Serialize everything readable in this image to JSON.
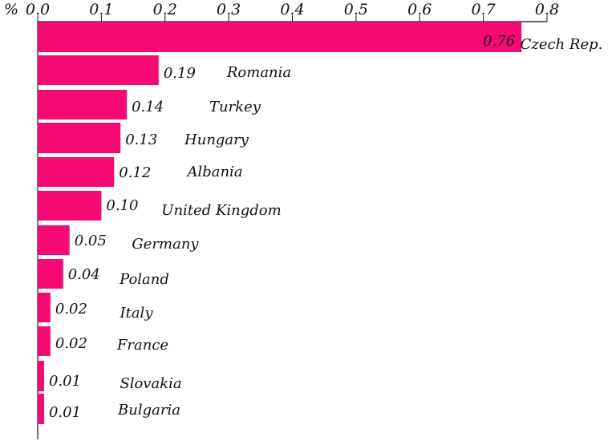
{
  "chart_data": {
    "type": "bar",
    "orientation": "horizontal",
    "unit": "%",
    "x_ticks": [
      "0.0",
      "0.1",
      "0.2",
      "0.3",
      "0.4",
      "0.5",
      "0.6",
      "0.7",
      "0.8"
    ],
    "xlim": [
      0,
      0.8
    ],
    "categories": [
      "Czech Rep.",
      "Romania",
      "Turkey",
      "Hungary",
      "Albania",
      "United Kingdom",
      "Germany",
      "Poland",
      "Italy",
      "France",
      "Slovakia",
      "Bulgaria"
    ],
    "values": [
      0.76,
      0.19,
      0.14,
      0.13,
      0.12,
      0.1,
      0.05,
      0.04,
      0.02,
      0.02,
      0.01,
      0.01
    ],
    "value_labels": [
      "0.76",
      "0.19",
      "0.14",
      "0.13",
      "0.12",
      "0.10",
      "0.05",
      "0.04",
      "0.02",
      "0.02",
      "0.01",
      "0.01"
    ],
    "bar_color": "#f50a73",
    "axis_position": "top",
    "grid": false,
    "legend": "none"
  }
}
